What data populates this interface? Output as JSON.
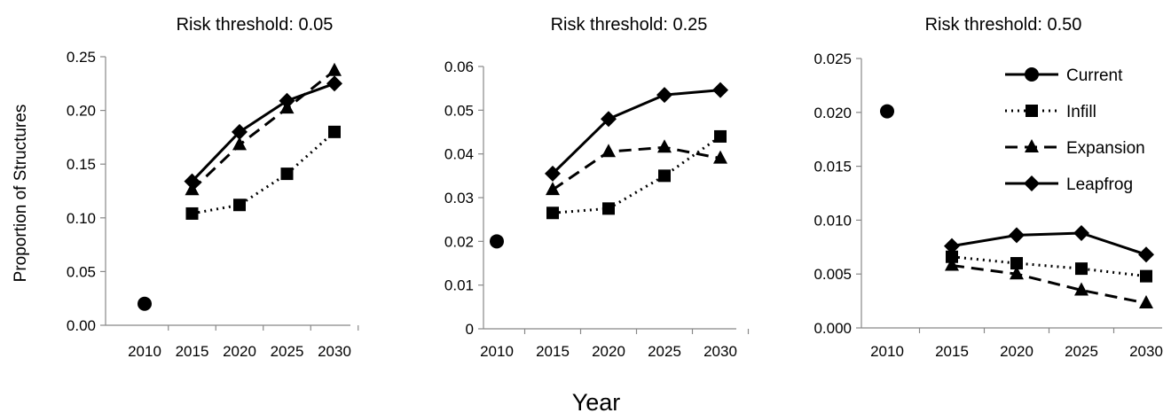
{
  "figure": {
    "ylabel": "Proportion of Structures",
    "xlabel": "Year"
  },
  "legend": {
    "placement": "top-right of third panel",
    "entries": [
      {
        "name": "Current",
        "marker": "circle",
        "line": "solid"
      },
      {
        "name": "Infill",
        "marker": "square",
        "line": "dotted"
      },
      {
        "name": "Expansion",
        "marker": "triangle",
        "line": "dashed"
      },
      {
        "name": "Leapfrog",
        "marker": "diamond",
        "line": "solid"
      }
    ]
  },
  "chart_data": [
    {
      "type": "line",
      "title": "Risk threshold: 0.05",
      "categories": [
        "2010",
        "2015",
        "2020",
        "2025",
        "2030"
      ],
      "ylim": [
        0,
        0.25
      ],
      "yticks": [
        "0.00",
        "0.05",
        "0.10",
        "0.15",
        "0.20",
        "0.25"
      ],
      "series": [
        {
          "name": "Current",
          "values": [
            0.02,
            null,
            null,
            null,
            null
          ]
        },
        {
          "name": "Infill",
          "values": [
            null,
            0.104,
            0.112,
            0.141,
            0.18
          ]
        },
        {
          "name": "Expansion",
          "values": [
            null,
            0.126,
            0.168,
            0.202,
            0.237
          ]
        },
        {
          "name": "Leapfrog",
          "values": [
            null,
            0.134,
            0.18,
            0.209,
            0.225
          ]
        }
      ]
    },
    {
      "type": "line",
      "title": "Risk threshold: 0.25",
      "categories": [
        "2010",
        "2015",
        "2020",
        "2025",
        "2030"
      ],
      "ylim": [
        0,
        0.06
      ],
      "yticks": [
        "0",
        "0.01",
        "0.02",
        "0.03",
        "0.04",
        "0.05",
        "0.06"
      ],
      "series": [
        {
          "name": "Current",
          "values": [
            0.02,
            null,
            null,
            null,
            null
          ]
        },
        {
          "name": "Infill",
          "values": [
            null,
            0.0265,
            0.0275,
            0.035,
            0.044
          ]
        },
        {
          "name": "Expansion",
          "values": [
            null,
            0.0318,
            0.0405,
            0.0415,
            0.039
          ]
        },
        {
          "name": "Leapfrog",
          "values": [
            null,
            0.0355,
            0.048,
            0.0535,
            0.0546
          ]
        }
      ]
    },
    {
      "type": "line",
      "title": "Risk threshold: 0.50",
      "categories": [
        "2010",
        "2015",
        "2020",
        "2025",
        "2030"
      ],
      "ylim": [
        0,
        0.025
      ],
      "yticks": [
        "0.000",
        "0.005",
        "0.010",
        "0.015",
        "0.020",
        "0.025"
      ],
      "series": [
        {
          "name": "Current",
          "values": [
            0.0201,
            null,
            null,
            null,
            null
          ]
        },
        {
          "name": "Infill",
          "values": [
            null,
            0.0066,
            0.006,
            0.0055,
            0.0048
          ]
        },
        {
          "name": "Expansion",
          "values": [
            null,
            0.0058,
            0.005,
            0.0035,
            0.0023
          ]
        },
        {
          "name": "Leapfrog",
          "values": [
            null,
            0.0076,
            0.0086,
            0.0088,
            0.0068
          ]
        }
      ]
    }
  ]
}
